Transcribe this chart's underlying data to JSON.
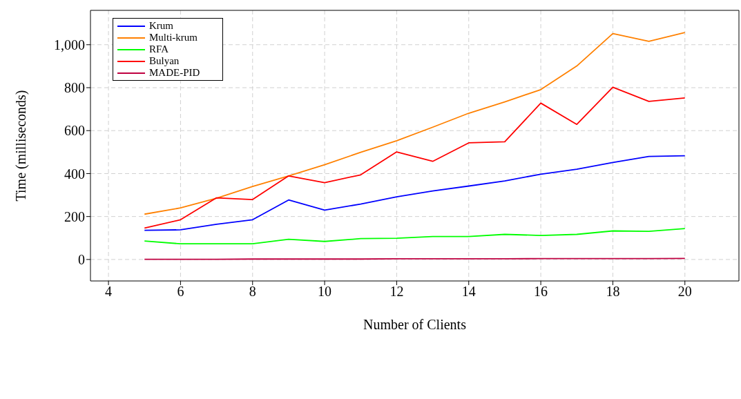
{
  "chart_data": {
    "type": "line",
    "xlabel": "Number of Clients",
    "ylabel": "Time (milliseconds)",
    "x": [
      5,
      6,
      7,
      8,
      9,
      10,
      11,
      12,
      13,
      14,
      15,
      16,
      17,
      18,
      19,
      20
    ],
    "series": [
      {
        "name": "Krum",
        "color": "#0000ff",
        "values": [
          136,
          138,
          164,
          185,
          277,
          230,
          258,
          292,
          319,
          342,
          366,
          397,
          420,
          452,
          480,
          483
        ]
      },
      {
        "name": "Multi-krum",
        "color": "#ff8000",
        "values": [
          211,
          240,
          285,
          340,
          389,
          441,
          499,
          553,
          616,
          681,
          734,
          791,
          901,
          1052,
          1016,
          1057
        ]
      },
      {
        "name": "RFA",
        "color": "#00ff00",
        "values": [
          86,
          73,
          73,
          73,
          94,
          84,
          97,
          99,
          107,
          107,
          117,
          112,
          117,
          133,
          131,
          144
        ]
      },
      {
        "name": "Bulyan",
        "color": "#ff0000",
        "values": [
          146,
          185,
          287,
          279,
          389,
          358,
          394,
          501,
          457,
          543,
          548,
          728,
          629,
          802,
          736,
          752
        ]
      },
      {
        "name": "MADE-PID",
        "color": "#bf0040",
        "values": [
          1,
          1,
          1,
          2,
          2,
          2,
          2,
          3,
          3,
          3,
          3,
          4,
          4,
          4,
          4,
          5
        ]
      }
    ],
    "xlim": [
      3.5,
      21.5
    ],
    "xticks": [
      4,
      6,
      8,
      10,
      12,
      14,
      16,
      18,
      20
    ],
    "ylim": [
      -100,
      1160
    ],
    "yticks": [
      0,
      200,
      400,
      600,
      800,
      {
        "value": 1000,
        "label": "1,000"
      }
    ],
    "grid": true,
    "legend": "top left",
    "marker": "none",
    "line_style": "solid"
  }
}
